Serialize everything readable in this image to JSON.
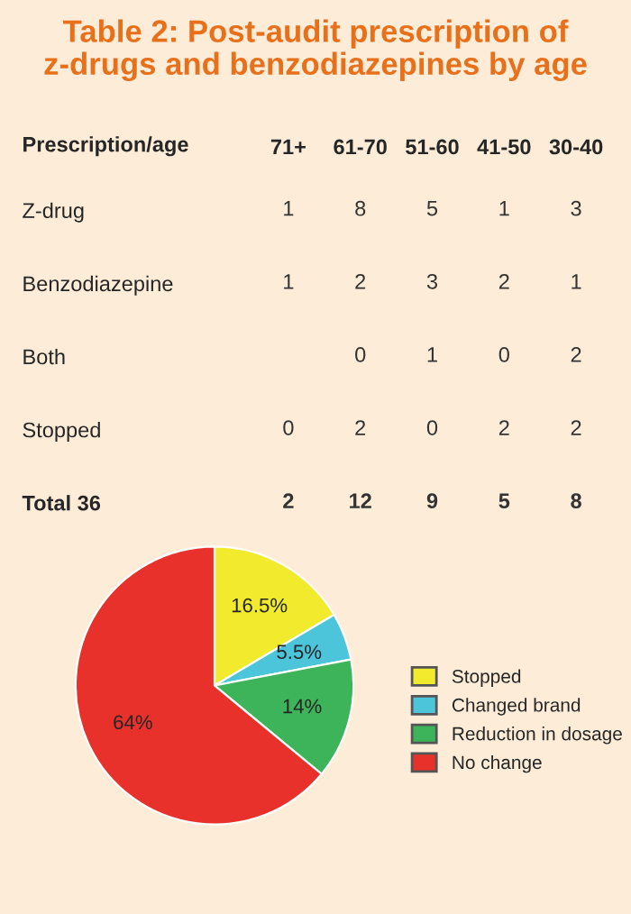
{
  "chart_data": [
    {
      "type": "heatmap",
      "title": "Table 2: Post-audit prescription of\nz-drugs and benzodiazepines by age",
      "ylabel": "Prescription/age",
      "color": "#fcecd8",
      "data_labels": true,
      "categories": [
        "71+",
        "61-70",
        "51-60",
        "41-50",
        "30-40"
      ],
      "y_categories": [
        "Z-drug",
        "Benzodiazepine",
        "Both",
        "Stopped",
        "Total 36"
      ],
      "cells": [
        [
          1,
          8,
          5,
          1,
          3
        ],
        [
          1,
          2,
          3,
          2,
          1
        ],
        [
          null,
          0,
          1,
          0,
          2
        ],
        [
          0,
          2,
          0,
          2,
          2
        ],
        [
          2,
          12,
          9,
          5,
          8
        ]
      ]
    },
    {
      "type": "pie",
      "categories": [
        "Stopped",
        "Changed brand",
        "Reduction in dosage",
        "No change"
      ],
      "values": [
        16.5,
        5.5,
        14,
        64
      ],
      "colors": [
        "#f2ea2c",
        "#4cc4d9",
        "#3db45a",
        "#e8312a"
      ],
      "value_labels": [
        "16.5%",
        "5.5%",
        "14%",
        "64%"
      ],
      "legend": "right"
    }
  ]
}
